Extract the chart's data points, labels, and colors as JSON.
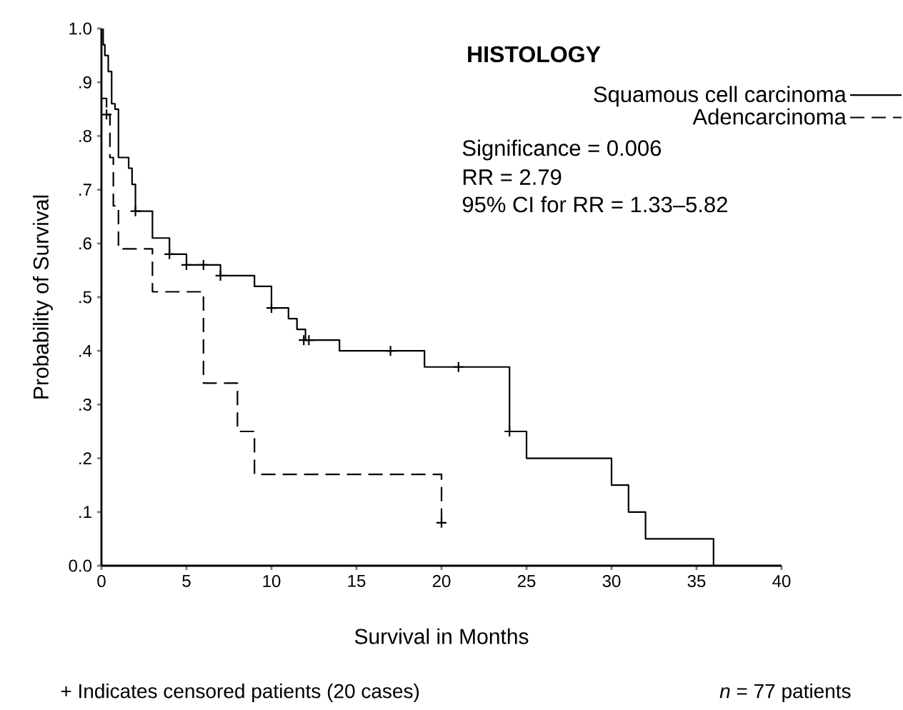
{
  "chart_data": {
    "type": "step",
    "title": "HISTOLOGY",
    "xlabel": "Survival in Months",
    "ylabel": "Probability of Survival",
    "xlim": [
      0,
      40
    ],
    "ylim": [
      0,
      1
    ],
    "xticks": [
      0,
      5,
      10,
      15,
      20,
      25,
      30,
      35,
      40
    ],
    "yticks": [
      {
        "value": 0,
        "label": "0.0"
      },
      {
        "value": 0.1,
        "label": ".1"
      },
      {
        "value": 0.2,
        "label": ".2"
      },
      {
        "value": 0.3,
        "label": ".3"
      },
      {
        "value": 0.4,
        "label": ".4"
      },
      {
        "value": 0.5,
        "label": ".5"
      },
      {
        "value": 0.6,
        "label": ".6"
      },
      {
        "value": 0.7,
        "label": ".7"
      },
      {
        "value": 0.8,
        "label": ".8"
      },
      {
        "value": 0.9,
        "label": ".9"
      },
      {
        "value": 1,
        "label": "1.0"
      }
    ],
    "legend": "top right",
    "series": [
      {
        "name": "Squamous cell carcinoma",
        "color": "#000000",
        "line_style": "solid",
        "x": [
          0,
          0.1,
          0.2,
          0.4,
          0.6,
          0.8,
          1,
          1.6,
          1.8,
          2,
          3,
          4,
          5,
          7,
          9,
          10,
          11,
          11.5,
          12,
          14,
          19,
          24,
          25,
          30,
          31,
          32,
          36
        ],
        "values": [
          1,
          0.97,
          0.95,
          0.92,
          0.86,
          0.85,
          0.76,
          0.74,
          0.71,
          0.66,
          0.61,
          0.58,
          0.56,
          0.54,
          0.52,
          0.48,
          0.46,
          0.44,
          0.42,
          0.4,
          0.37,
          0.25,
          0.2,
          0.15,
          0.1,
          0.05,
          0
        ]
      },
      {
        "name": "Adencarcinoma",
        "color": "#000000",
        "line_style": "dashed",
        "x": [
          0,
          0.3,
          0.5,
          0.7,
          1,
          3,
          6,
          8,
          9,
          20
        ],
        "values": [
          0.87,
          0.84,
          0.76,
          0.67,
          0.59,
          0.51,
          0.34,
          0.25,
          0.17,
          0.08
        ]
      },
      {
        "type": "scatter",
        "marker": "cross",
        "color": "#000000",
        "x": [
          2,
          4,
          5,
          6,
          7,
          10,
          11.9,
          12.2,
          17,
          21,
          24
        ],
        "values": [
          0.66,
          0.58,
          0.56,
          0.56,
          0.54,
          0.48,
          0.42,
          0.42,
          0.4,
          0.37,
          0.25
        ]
      },
      {
        "type": "scatter",
        "marker": "cross",
        "color": "#000000",
        "x": [
          0.3,
          20
        ],
        "values": [
          0.84,
          0.08
        ]
      }
    ],
    "annotations": [
      "Significance = 0.006",
      "RR = 2.79",
      "95% CI for RR = 1.33–5.82",
      "+ Indicates censored patients (20 cases)",
      "*n* = 77 patients"
    ]
  }
}
